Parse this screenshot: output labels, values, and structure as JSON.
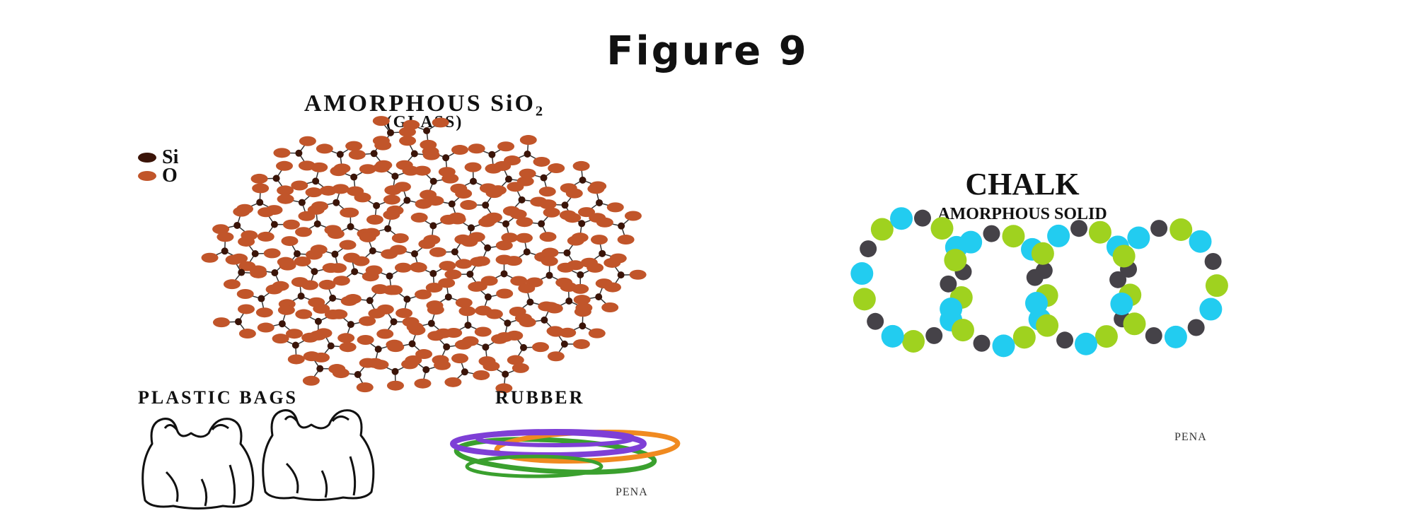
{
  "figure_title": "Figure 9",
  "glass": {
    "title": "AMORPHOUS SiO₂",
    "subtitle": "(GLASS)",
    "legend": [
      {
        "label": "Si",
        "color": "#3a1408"
      },
      {
        "label": "O",
        "color": "#c1552a"
      }
    ]
  },
  "plastic_label": "PLASTIC BAGS",
  "rubber_label": "RUBBER",
  "left_credit": "PENA",
  "chalk": {
    "title": "CHALK",
    "subtitle": "AMORPHOUS SOLID",
    "credit": "PENA",
    "colors": {
      "green": "#9fd21f",
      "cyan": "#22ccf0",
      "dark": "#454248"
    }
  },
  "rubber_band_colors": [
    "#7e3fd6",
    "#f08a20",
    "#3aa02e",
    "#7e3fd6"
  ]
}
